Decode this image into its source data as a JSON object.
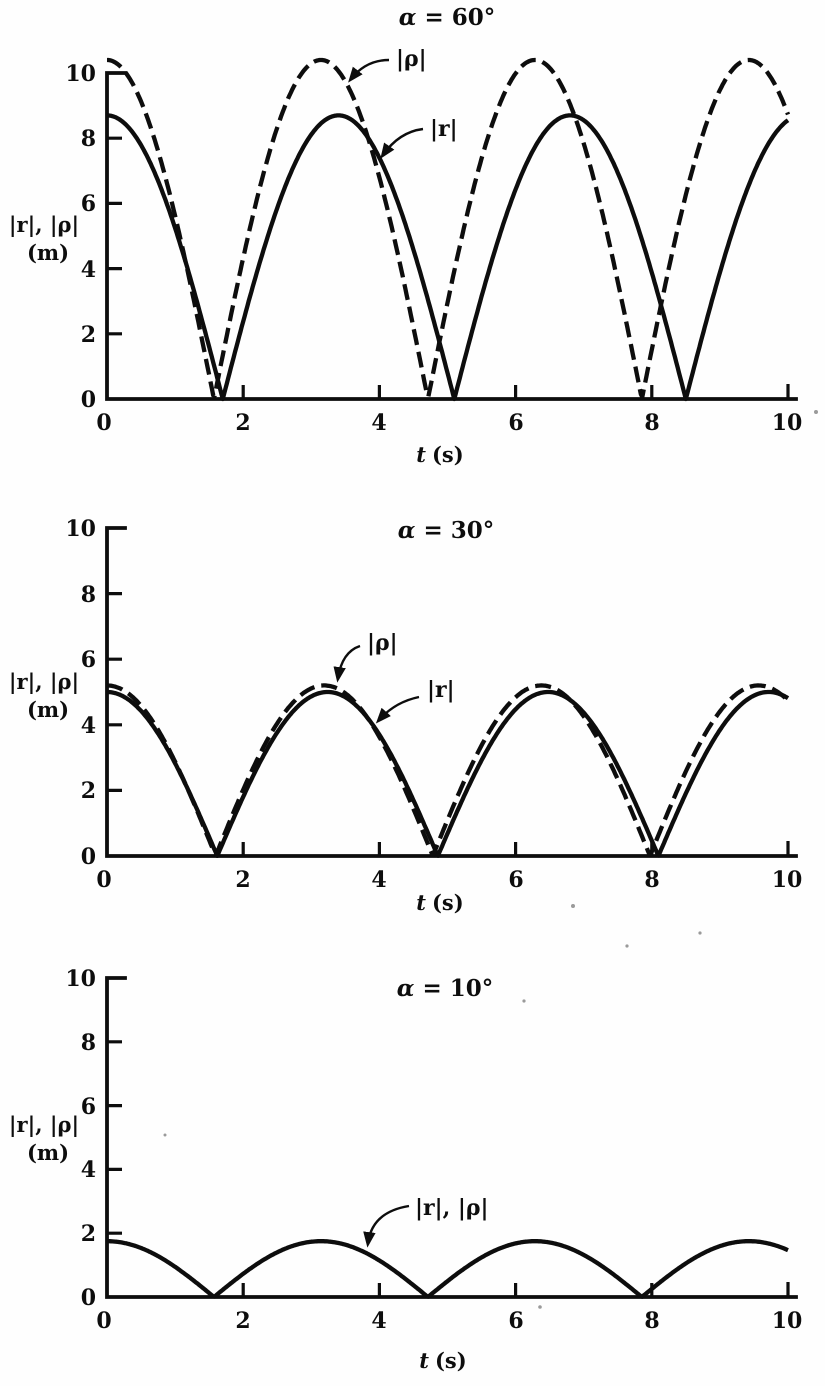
{
  "figure": {
    "background_color": "#fefefe",
    "ink_color": "#0d0d0d",
    "description_visible_text_only": true
  },
  "chart_data": [
    {
      "type": "line",
      "title": "α = 60°",
      "title_symbol": "α",
      "title_rest": "= 60°",
      "xlabel": "t (s)",
      "xlabel_symbol": "t",
      "xlabel_rest": "(s)",
      "ylabel": "|r|, |ρ| (m)",
      "ylabel_line1": "|r|, |ρ|",
      "ylabel_line2": "(m)",
      "xlim": [
        0,
        10
      ],
      "ylim": [
        0,
        10
      ],
      "x_ticks": [
        "0",
        "2",
        "4",
        "6",
        "8",
        "10"
      ],
      "y_ticks": [
        "10",
        "8",
        "6",
        "4",
        "2",
        "0"
      ],
      "grid": false,
      "legend_position": "inline-annotations",
      "series": [
        {
          "name": "|r|",
          "style": "solid",
          "model": "y = A·|cos(ω·t)|",
          "amplitude": 8.7,
          "omega": 0.924,
          "zeros_t": [
            1.7,
            5.1,
            8.5
          ],
          "peaks_t": [
            0,
            3.4,
            6.8
          ],
          "peak_value": 8.7,
          "t_samples": [
            0,
            1,
            2,
            3,
            4,
            5,
            6,
            7,
            8,
            9,
            10
          ],
          "values_at_t_samples": [
            8.7,
            5.2,
            2.4,
            8.1,
            7.4,
            0.9,
            6.5,
            8.6,
            3.9,
            3.9,
            8.5
          ]
        },
        {
          "name": "|ρ|",
          "style": "dashed",
          "model": "y = A·|cos(ω·t)|",
          "amplitude": 10.4,
          "omega": 1.0,
          "zeros_t": [
            1.57,
            4.71,
            7.85
          ],
          "peaks_t": [
            0,
            3.14,
            6.28,
            9.42
          ],
          "peak_value": 10.4,
          "t_samples": [
            0,
            1,
            2,
            3,
            4,
            5,
            6,
            7,
            8,
            9,
            10
          ],
          "values_at_t_samples": [
            10.4,
            5.6,
            4.3,
            10.3,
            6.8,
            3.0,
            10.0,
            7.8,
            1.5,
            9.5,
            8.7
          ]
        }
      ],
      "annotations": [
        {
          "label": "|ρ|",
          "points_to_series": "|ρ|"
        },
        {
          "label": "|r|",
          "points_to_series": "|r|"
        }
      ]
    },
    {
      "type": "line",
      "title": "α = 30°",
      "title_symbol": "α",
      "title_rest": "= 30°",
      "xlabel": "t (s)",
      "xlabel_symbol": "t",
      "xlabel_rest": "(s)",
      "ylabel": "|r|, |ρ| (m)",
      "ylabel_line1": "|r|, |ρ|",
      "ylabel_line2": "(m)",
      "xlim": [
        0,
        10
      ],
      "ylim": [
        0,
        10
      ],
      "x_ticks": [
        "0",
        "2",
        "4",
        "6",
        "8",
        "10"
      ],
      "y_ticks": [
        "10",
        "8",
        "6",
        "4",
        "2",
        "0"
      ],
      "grid": false,
      "legend_position": "inline-annotations",
      "series": [
        {
          "name": "|r|",
          "style": "solid",
          "model": "y = A·|cos(ω·t)|",
          "amplitude": 5.0,
          "omega": 0.97,
          "zeros_t": [
            1.62,
            4.86,
            8.1
          ],
          "peaks_t": [
            0,
            3.24,
            6.48,
            9.71
          ],
          "peak_value": 5.0,
          "t_samples": [
            0,
            1,
            2,
            3,
            4,
            5,
            6,
            7,
            8,
            9,
            10
          ],
          "values_at_t_samples": [
            5.0,
            2.8,
            1.8,
            4.9,
            3.7,
            0.7,
            4.5,
            4.4,
            0.5,
            3.9,
            4.8
          ]
        },
        {
          "name": "|ρ|",
          "style": "dashed",
          "model": "y = A·|cos(ω·t)|",
          "amplitude": 5.2,
          "omega": 0.985,
          "zeros_t": [
            1.59,
            4.78,
            7.97
          ],
          "peaks_t": [
            0,
            3.19,
            6.38,
            9.57
          ],
          "peak_value": 5.2,
          "t_samples": [
            0,
            1,
            2,
            3,
            4,
            5,
            6,
            7,
            8,
            9,
            10
          ],
          "values_at_t_samples": [
            5.2,
            2.9,
            2.0,
            5.1,
            3.6,
            1.1,
            4.8,
            4.2,
            0.1,
            4.4,
            4.8
          ]
        }
      ],
      "annotations": [
        {
          "label": "|ρ|",
          "points_to_series": "|ρ|"
        },
        {
          "label": "|r|",
          "points_to_series": "|r|"
        }
      ]
    },
    {
      "type": "line",
      "title": "α = 10°",
      "title_symbol": "α",
      "title_rest": "= 10°",
      "xlabel": "t (s)",
      "xlabel_symbol": "t",
      "xlabel_rest": "(s)",
      "ylabel": "|r|, |ρ| (m)",
      "ylabel_line1": "|r|, |ρ|",
      "ylabel_line2": "(m)",
      "xlim": [
        0,
        10
      ],
      "ylim": [
        0,
        10
      ],
      "x_ticks": [
        "0",
        "2",
        "4",
        "6",
        "8",
        "10"
      ],
      "y_ticks": [
        "10",
        "8",
        "6",
        "4",
        "2",
        "0"
      ],
      "grid": false,
      "legend_position": "inline-annotations",
      "series": [
        {
          "name": "|r|, |ρ|",
          "style": "solid",
          "note": "the two curves coincide at this angle",
          "model": "y = A·|cos(ω·t)|",
          "amplitude": 1.75,
          "omega": 1.0,
          "zeros_t": [
            1.57,
            4.71,
            7.85
          ],
          "peaks_t": [
            0,
            3.14,
            6.28,
            9.42
          ],
          "peak_value": 1.75,
          "t_samples": [
            0,
            1,
            2,
            3,
            4,
            5,
            6,
            7,
            8,
            9,
            10
          ],
          "values_at_t_samples": [
            1.75,
            0.95,
            0.73,
            1.73,
            1.14,
            0.5,
            1.68,
            1.32,
            0.25,
            1.59,
            1.47
          ]
        }
      ],
      "annotations": [
        {
          "label": "|r|, |ρ|",
          "points_to_series": "|r|, |ρ|"
        }
      ]
    }
  ]
}
